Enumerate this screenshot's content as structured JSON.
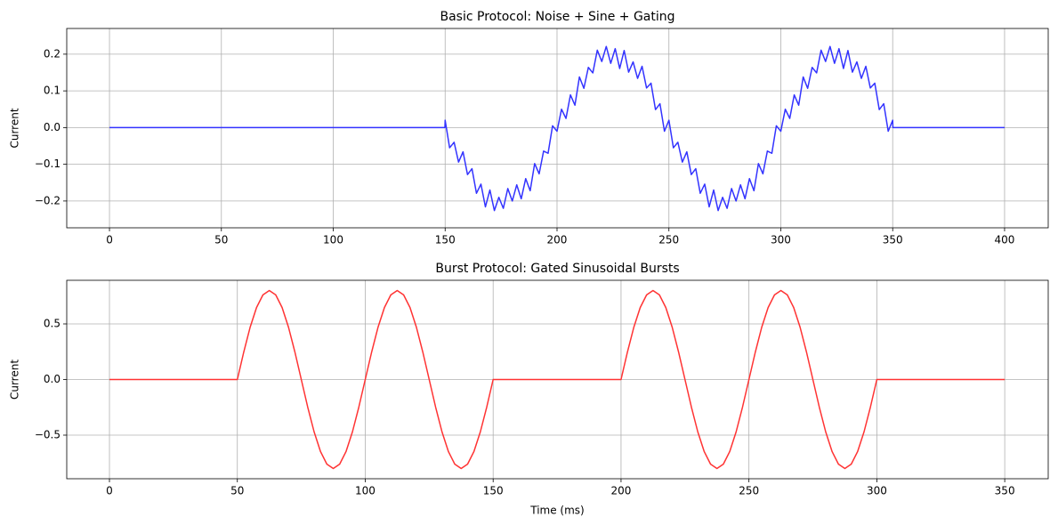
{
  "chart_data": [
    {
      "type": "line",
      "title": "Basic Protocol: Noise + Sine + Gating",
      "ylabel": "Current",
      "color": "#3333ff",
      "grid": true,
      "xlim": [
        -19.1,
        419.5
      ],
      "ylim": [
        -0.273,
        0.27
      ],
      "xticks": [
        0,
        50,
        100,
        150,
        200,
        250,
        300,
        350,
        400
      ],
      "yticks": [
        {
          "value": -0.2,
          "label": "−0.2"
        },
        {
          "value": -0.1,
          "label": "−0.1"
        },
        {
          "value": 0.0,
          "label": "0.0"
        },
        {
          "value": 0.1,
          "label": "0.1"
        },
        {
          "value": 0.2,
          "label": "0.2"
        }
      ],
      "x": [
        0,
        149.9,
        150,
        152,
        154,
        156,
        158,
        160,
        162,
        164,
        166,
        168,
        170,
        172,
        174,
        176,
        178,
        180,
        182,
        184,
        186,
        188,
        190,
        192,
        194,
        196,
        198,
        200,
        202,
        204,
        206,
        208,
        210,
        212,
        214,
        216,
        218,
        220,
        222,
        224,
        226,
        228,
        230,
        232,
        234,
        236,
        238,
        240,
        242,
        244,
        246,
        248,
        250,
        252,
        254,
        256,
        258,
        260,
        262,
        264,
        266,
        268,
        270,
        272,
        274,
        276,
        278,
        280,
        282,
        284,
        286,
        288,
        290,
        292,
        294,
        296,
        298,
        300,
        302,
        304,
        306,
        308,
        310,
        312,
        314,
        316,
        318,
        320,
        322,
        324,
        326,
        328,
        330,
        332,
        334,
        336,
        338,
        340,
        342,
        344,
        346,
        348,
        350,
        350.1,
        400
      ],
      "values": [
        0,
        0,
        0.02,
        -0.055,
        -0.04,
        -0.094,
        -0.066,
        -0.128,
        -0.112,
        -0.179,
        -0.154,
        -0.216,
        -0.17,
        -0.226,
        -0.19,
        -0.22,
        -0.166,
        -0.2,
        -0.156,
        -0.194,
        -0.139,
        -0.172,
        -0.098,
        -0.126,
        -0.064,
        -0.07,
        0.005,
        -0.01,
        0.05,
        0.025,
        0.089,
        0.061,
        0.138,
        0.107,
        0.164,
        0.149,
        0.211,
        0.18,
        0.221,
        0.175,
        0.215,
        0.161,
        0.21,
        0.151,
        0.179,
        0.134,
        0.167,
        0.108,
        0.121,
        0.049,
        0.065,
        -0.01,
        0.02,
        -0.055,
        -0.04,
        -0.094,
        -0.066,
        -0.128,
        -0.112,
        -0.179,
        -0.154,
        -0.216,
        -0.17,
        -0.226,
        -0.19,
        -0.22,
        -0.166,
        -0.2,
        -0.156,
        -0.194,
        -0.139,
        -0.172,
        -0.098,
        -0.126,
        -0.064,
        -0.07,
        0.005,
        -0.01,
        0.05,
        0.025,
        0.089,
        0.061,
        0.138,
        0.107,
        0.164,
        0.149,
        0.211,
        0.18,
        0.221,
        0.175,
        0.215,
        0.161,
        0.21,
        0.151,
        0.179,
        0.134,
        0.167,
        0.108,
        0.121,
        0.049,
        0.065,
        -0.01,
        0.02,
        0,
        0
      ]
    },
    {
      "type": "line",
      "title": "Burst Protocol: Gated Sinusoidal Bursts",
      "ylabel": "Current",
      "xlabel": "Time (ms)",
      "color": "#ff3333",
      "grid": true,
      "xlim": [
        -16.7,
        367
      ],
      "ylim": [
        -0.892,
        0.892
      ],
      "xticks": [
        0,
        50,
        100,
        150,
        200,
        250,
        300,
        350
      ],
      "yticks": [
        {
          "value": -0.5,
          "label": "−0.5"
        },
        {
          "value": 0.0,
          "label": "0.0"
        },
        {
          "value": 0.5,
          "label": "0.5"
        }
      ],
      "x": [
        0,
        50,
        52.5,
        55,
        57.5,
        60,
        62.5,
        65,
        67.5,
        70,
        72.5,
        75,
        77.5,
        80,
        82.5,
        85,
        87.5,
        90,
        92.5,
        95,
        97.5,
        100,
        102.5,
        105,
        107.5,
        110,
        112.5,
        115,
        117.5,
        120,
        122.5,
        125,
        127.5,
        130,
        132.5,
        135,
        137.5,
        140,
        142.5,
        145,
        147.5,
        150,
        200,
        202.5,
        205,
        207.5,
        210,
        212.5,
        215,
        217.5,
        220,
        222.5,
        225,
        227.5,
        230,
        232.5,
        235,
        237.5,
        240,
        242.5,
        245,
        247.5,
        250,
        252.5,
        255,
        257.5,
        260,
        262.5,
        265,
        267.5,
        270,
        272.5,
        275,
        277.5,
        280,
        282.5,
        285,
        287.5,
        290,
        292.5,
        295,
        297.5,
        300,
        350
      ],
      "values": [
        0,
        0,
        0.247,
        0.47,
        0.647,
        0.761,
        0.8,
        0.761,
        0.647,
        0.47,
        0.247,
        0,
        -0.247,
        -0.47,
        -0.647,
        -0.761,
        -0.8,
        -0.761,
        -0.647,
        -0.47,
        -0.247,
        0,
        0.247,
        0.47,
        0.647,
        0.761,
        0.8,
        0.761,
        0.647,
        0.47,
        0.247,
        0,
        -0.247,
        -0.47,
        -0.647,
        -0.761,
        -0.8,
        -0.761,
        -0.647,
        -0.47,
        -0.247,
        0,
        0,
        0.247,
        0.47,
        0.647,
        0.761,
        0.8,
        0.761,
        0.647,
        0.47,
        0.247,
        0,
        -0.247,
        -0.47,
        -0.647,
        -0.761,
        -0.8,
        -0.761,
        -0.647,
        -0.47,
        -0.247,
        0,
        0.247,
        0.47,
        0.647,
        0.761,
        0.8,
        0.761,
        0.647,
        0.47,
        0.247,
        0,
        -0.247,
        -0.47,
        -0.647,
        -0.761,
        -0.8,
        -0.761,
        -0.647,
        -0.47,
        -0.247,
        0,
        0
      ]
    }
  ]
}
